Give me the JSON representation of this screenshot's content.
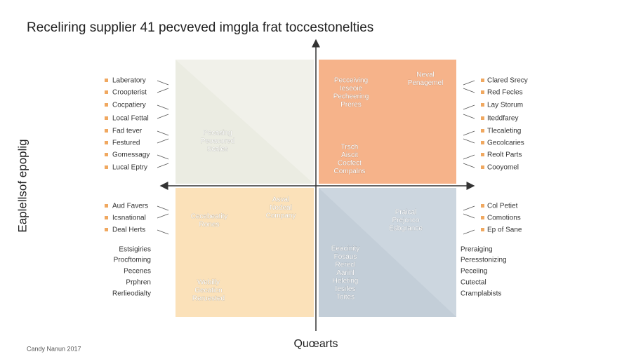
{
  "title": "Receliring supplier 41 pecveved imggla frat toccestonelties",
  "y_axis_label": "Eaplellsof epoplig",
  "x_axis_label": "Quœarts",
  "footer": "Candy Nanun 2017",
  "quadrants": [
    {
      "labels": [
        [
          "Pecasing",
          "Peoacored",
          "Scales"
        ]
      ]
    },
    {
      "labels": [
        [
          "Pecceiving",
          "Ieseoie",
          "Pecheering",
          "Preres"
        ],
        [
          "Neval",
          "Penagemel"
        ],
        [
          "Trsch",
          "Aiscit",
          "Cocfect",
          "Compalns"
        ]
      ]
    },
    {
      "labels": [
        [
          "Cecebeatity",
          "Rones"
        ],
        [
          "Asval",
          "Nodeal",
          "Company"
        ],
        [
          "Webilly",
          "Gecaticn",
          "Reruested"
        ]
      ]
    },
    {
      "labels": [
        [
          "Praical",
          "Prejcnco",
          "Esbgrance"
        ],
        [
          "Eeacinity",
          "Fosaus",
          "Rerecl",
          "Aarinl",
          "Heleting",
          "Iesifes",
          "Toites"
        ]
      ]
    }
  ],
  "left_lists": {
    "top": [
      "Laberatory",
      "Croopterist",
      "Cocpatiery",
      "Local Fettal",
      "Fad tever",
      "Festured",
      "Gomessagy",
      "Lucal Eptry"
    ],
    "middle": [
      "Aud Favers",
      "Icsnational",
      "Deal Herts"
    ],
    "bottom": [
      "Estsigiries",
      "Procftoming",
      "Pecenes",
      "Prphren",
      "Rerlieodialty"
    ]
  },
  "right_lists": {
    "top": [
      "Clared Srecy",
      "Red Fecles",
      "Lay Storum",
      "Iteddfarey",
      "Tlecaleting",
      "Gecolcaries",
      "Reolt Parts",
      "Cooyomel"
    ],
    "middle": [
      "Col Petiet",
      "Comotions",
      "Ep of Sane"
    ],
    "bottom": [
      "Preraiging",
      "Peresstonizing",
      "Peceiing",
      "Cutectal",
      "Cramplabists"
    ]
  }
}
